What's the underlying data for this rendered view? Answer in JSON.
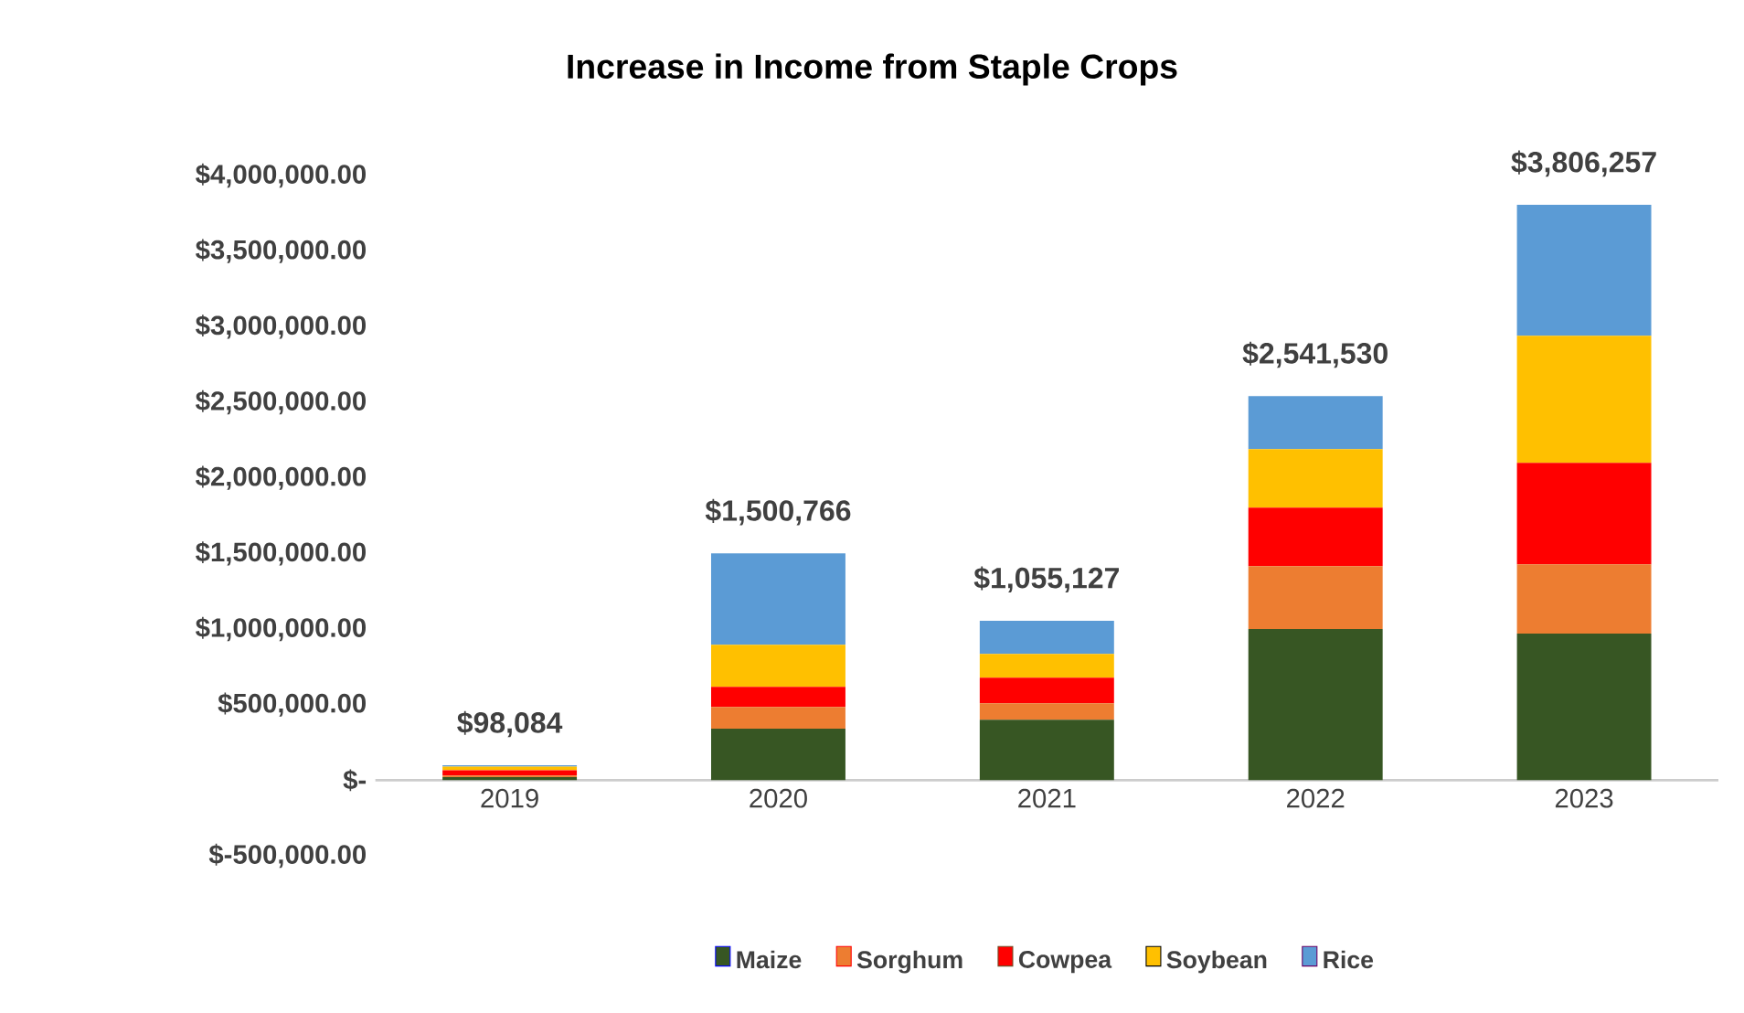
{
  "chart_data": {
    "type": "bar",
    "title": "Increase in Income from Staple Crops",
    "stacked": true,
    "categories": [
      "2019",
      "2020",
      "2021",
      "2022",
      "2023"
    ],
    "series": [
      {
        "name": "Maize",
        "color": "#375623",
        "values": [
          20000,
          340000,
          400000,
          1000000,
          970000
        ]
      },
      {
        "name": "Sorghum",
        "color": "#ed7d31",
        "values": [
          10000,
          145000,
          108000,
          416000,
          458000
        ]
      },
      {
        "name": "Cowpea",
        "color": "#ff0000",
        "values": [
          35000,
          132000,
          170000,
          387000,
          672000
        ]
      },
      {
        "name": "Soybean",
        "color": "#ffc000",
        "values": [
          25000,
          278000,
          157000,
          387000,
          840000
        ]
      },
      {
        "name": "Rice",
        "color": "#5b9bd5",
        "values": [
          8084,
          605766,
          220127,
          351530,
          866257
        ]
      }
    ],
    "totals": [
      "$98,084",
      "$1,500,766",
      "$1,055,127",
      "$2,541,530",
      "$3,806,257"
    ],
    "ylim": [
      -500000,
      4000000
    ],
    "yticks": [
      {
        "value": -500000,
        "label": "$-500,000.00"
      },
      {
        "value": 0,
        "label": "$-"
      },
      {
        "value": 500000,
        "label": "$500,000.00"
      },
      {
        "value": 1000000,
        "label": "$1,000,000.00"
      },
      {
        "value": 1500000,
        "label": "$1,500,000.00"
      },
      {
        "value": 2000000,
        "label": "$2,000,000.00"
      },
      {
        "value": 2500000,
        "label": "$2,500,000.00"
      },
      {
        "value": 3000000,
        "label": "$3,000,000.00"
      },
      {
        "value": 3500000,
        "label": "$3,500,000.00"
      },
      {
        "value": 4000000,
        "label": "$4,000,000.00"
      }
    ],
    "grid": false,
    "legend": "bottom"
  }
}
